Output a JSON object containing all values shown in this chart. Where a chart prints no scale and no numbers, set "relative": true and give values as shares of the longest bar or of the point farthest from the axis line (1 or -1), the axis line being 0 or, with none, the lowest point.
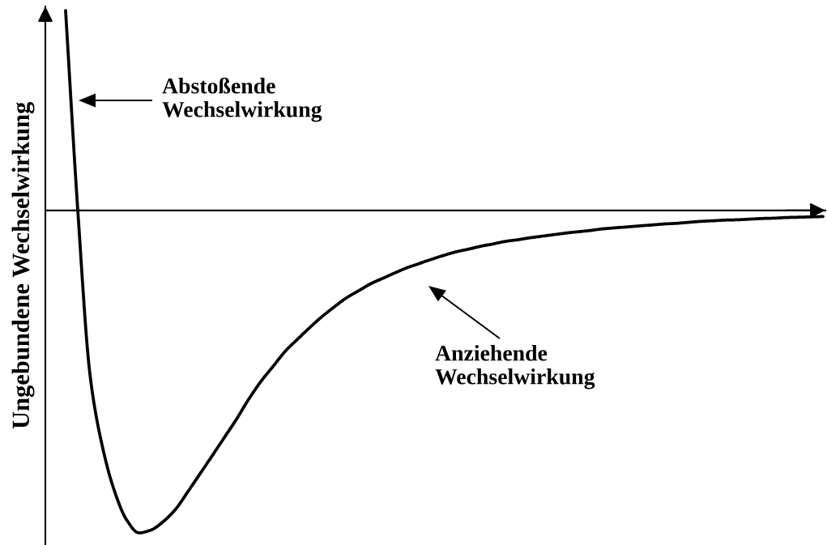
{
  "chart_data": {
    "type": "line",
    "relative": true,
    "color": "#000000",
    "ylabel": "Ungebundene Wechselwirkung",
    "annotations": [
      "Abstoßende\nWechselwirkung",
      "Anziehende\nWechselwirkung"
    ],
    "categories": [
      null,
      null,
      null,
      null,
      null,
      null,
      null,
      null,
      null,
      null,
      null,
      null,
      null,
      null,
      null,
      null,
      null,
      null,
      null,
      null,
      null,
      null,
      null,
      null,
      null,
      null,
      null,
      null,
      null,
      null,
      null,
      null,
      null,
      null,
      null,
      null,
      null,
      null,
      null,
      null,
      null,
      null,
      null,
      null,
      null,
      null,
      null,
      null,
      null,
      null,
      null,
      null,
      null,
      null,
      null,
      null,
      null,
      null,
      null,
      null,
      null,
      null,
      null
    ],
    "values": [
      0.62,
      0.0,
      -0.51,
      -0.73,
      -0.87,
      -0.96,
      -1,
      -0.991,
      -0.965,
      -0.927,
      -0.873,
      -0.817,
      -0.761,
      -0.704,
      -0.647,
      -0.585,
      -0.53,
      -0.483,
      -0.436,
      -0.399,
      -0.363,
      -0.329,
      -0.299,
      -0.271,
      -0.249,
      -0.227,
      -0.21,
      -0.193,
      -0.177,
      -0.164,
      -0.151,
      -0.139,
      -0.128,
      -0.12,
      -0.111,
      -0.104,
      -0.096,
      -0.091,
      -0.085,
      -0.08,
      -0.075,
      -0.07,
      -0.066,
      -0.062,
      -0.057,
      -0.054,
      -0.051,
      -0.048,
      -0.045,
      -0.042,
      -0.04,
      -0.037,
      -0.034,
      -0.032,
      -0.03,
      -0.029,
      -0.027,
      -0.025,
      -0.024,
      -0.022,
      -0.021,
      -0.02,
      -0.019
    ]
  }
}
